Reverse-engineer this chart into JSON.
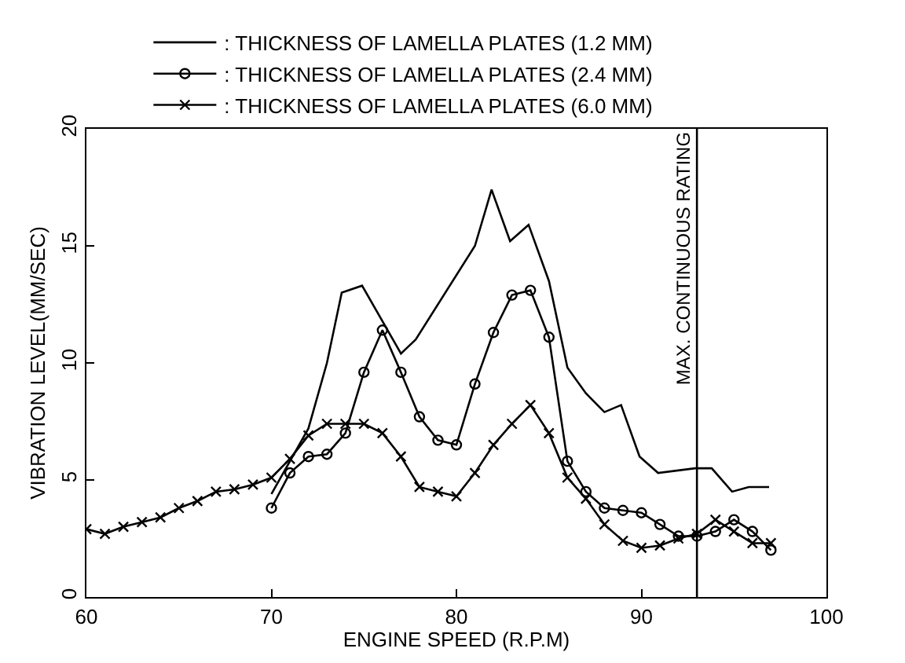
{
  "chart_data": {
    "type": "line",
    "xlabel": "ENGINE SPEED (R.P.M)",
    "ylabel": "VIBRATION LEVEL(MM/SEC)",
    "xlim": [
      60,
      100
    ],
    "ylim": [
      0,
      20
    ],
    "xticks": [
      60,
      70,
      80,
      90,
      100
    ],
    "yticks": [
      0,
      5,
      10,
      15,
      20
    ],
    "legend": "top left",
    "ref_lines": [
      {
        "axis": "x",
        "value": 93,
        "label": "MAX. CONTINUOUS RATING",
        "color": "#000000"
      }
    ],
    "series": [
      {
        "name": ": THICKNESS OF LAMELLA PLATES (1.2 MM)",
        "color": "#000000",
        "marker": "none",
        "x": [
          70,
          72,
          73,
          73.8,
          74.9,
          77,
          77.8,
          81,
          81.9,
          82.9,
          83.9,
          85,
          86,
          87,
          88,
          88.9,
          89.9,
          90.9,
          92.9,
          93.8,
          94.9,
          95.8,
          96.9
        ],
        "values": [
          4.4,
          7.2,
          10,
          13.0,
          13.3,
          10.4,
          11.0,
          15.0,
          17.4,
          15.2,
          15.9,
          13.5,
          9.8,
          8.7,
          7.9,
          8.2,
          6.0,
          5.3,
          5.5,
          5.5,
          4.5,
          4.7,
          4.7
        ]
      },
      {
        "name": ": THICKNESS OF LAMELLA PLATES (2.4 MM)",
        "color": "#000000",
        "marker": "circle",
        "x": [
          70,
          71,
          72,
          73,
          74,
          75,
          76,
          77,
          78,
          79,
          80,
          81,
          82,
          83,
          84,
          85,
          86,
          87,
          88,
          89,
          90,
          91,
          92,
          93,
          94,
          95,
          96,
          97
        ],
        "values": [
          3.8,
          5.3,
          6.0,
          6.1,
          7.0,
          9.6,
          11.4,
          9.6,
          7.7,
          6.7,
          6.5,
          9.1,
          11.3,
          12.9,
          13.1,
          11.1,
          5.8,
          4.5,
          3.8,
          3.7,
          3.6,
          3.1,
          2.6,
          2.6,
          2.8,
          3.3,
          2.8,
          2.0
        ]
      },
      {
        "name": ": THICKNESS OF LAMELLA PLATES (6.0 MM)",
        "color": "#000000",
        "marker": "cross",
        "x": [
          60,
          61,
          62,
          63,
          64,
          65,
          66,
          67,
          68,
          69,
          70,
          71,
          72,
          73,
          74,
          75,
          76,
          77,
          78,
          79,
          80,
          81,
          82,
          83,
          84,
          85,
          86,
          87,
          88,
          89,
          90,
          91,
          92,
          93,
          94,
          95,
          96,
          97
        ],
        "values": [
          2.9,
          2.7,
          3.0,
          3.2,
          3.4,
          3.8,
          4.1,
          4.5,
          4.6,
          4.8,
          5.1,
          5.9,
          6.9,
          7.4,
          7.4,
          7.4,
          7.0,
          6.0,
          4.7,
          4.5,
          4.3,
          5.3,
          6.5,
          7.4,
          8.2,
          7.0,
          5.1,
          4.2,
          3.1,
          2.4,
          2.1,
          2.2,
          2.5,
          2.7,
          3.3,
          2.8,
          2.3,
          2.3
        ]
      }
    ]
  }
}
